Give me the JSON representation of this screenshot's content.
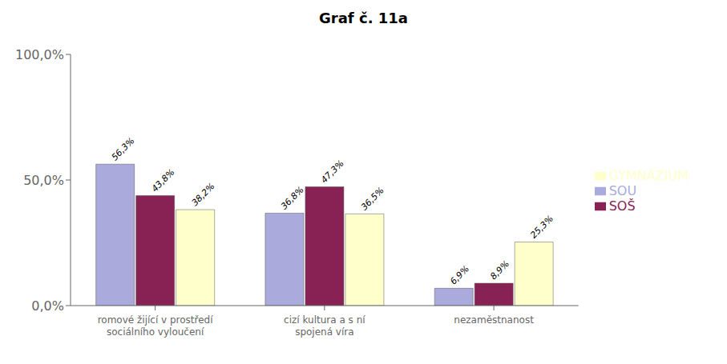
{
  "chart_data": {
    "type": "bar",
    "title": "Graf č. 11a",
    "categories": [
      "romové žijící v prostředí\nsociálního vyloučení",
      "cizí kultura a s ní\nspojená víra",
      "nezaměstnanost"
    ],
    "series": [
      {
        "name": "SOU",
        "color": "#aaaadd",
        "values": [
          56.3,
          36.8,
          6.9
        ],
        "value_labels": [
          "56,3%",
          "36,8%",
          "6,9%"
        ]
      },
      {
        "name": "SOŠ",
        "color": "#882255",
        "values": [
          43.8,
          47.3,
          8.9
        ],
        "value_labels": [
          "43,8%",
          "47,3%",
          "8,9%"
        ]
      },
      {
        "name": "GYMNÁZIUM",
        "color": "#ffffcc",
        "values": [
          38.2,
          36.5,
          25.3
        ],
        "value_labels": [
          "38,2%",
          "36,5%",
          "25,3%"
        ]
      }
    ],
    "ylim": [
      0,
      100
    ],
    "yticks": [
      {
        "value": 0,
        "label": "0,0%"
      },
      {
        "value": 50,
        "label": "50,0%"
      },
      {
        "value": 100,
        "label": "100,0%"
      }
    ],
    "data_labels": true,
    "grid": false,
    "legend": "right"
  }
}
